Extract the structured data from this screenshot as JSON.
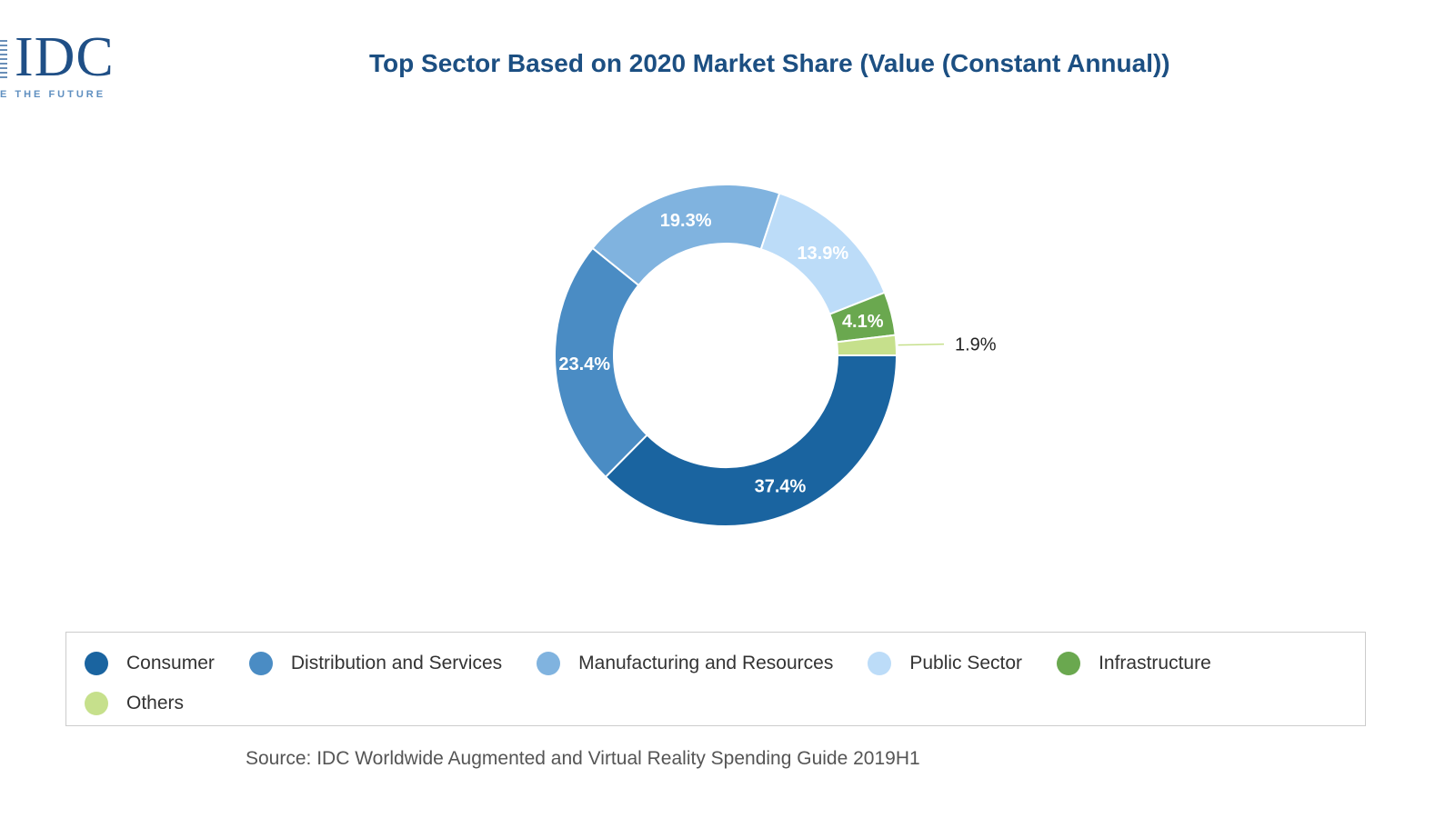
{
  "logo": {
    "text": "IDC",
    "tagline": "E THE FUTURE"
  },
  "title": "Top Sector Based on 2020 Market Share (Value (Constant Annual))",
  "source": "Source: IDC Worldwide Augmented and Virtual Reality Spending Guide 2019H1",
  "chart_data": {
    "type": "pie",
    "donut": true,
    "title": "Top Sector Based on 2020 Market Share (Value (Constant Annual))",
    "categories": [
      "Consumer",
      "Distribution and Services",
      "Manufacturing and Resources",
      "Public Sector",
      "Infrastructure",
      "Others"
    ],
    "values": [
      37.4,
      23.4,
      19.3,
      13.9,
      4.1,
      1.9
    ],
    "labels": [
      "37.4%",
      "23.4%",
      "19.3%",
      "13.9%",
      "4.1%",
      "1.9%"
    ],
    "colors": [
      "#1a64a0",
      "#4a8cc4",
      "#80b3df",
      "#bcdcf8",
      "#6aa84f",
      "#c6e08c"
    ],
    "legend_position": "bottom"
  }
}
